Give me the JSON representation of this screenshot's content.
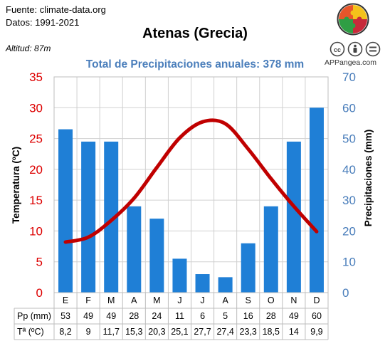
{
  "source": "Fuente: climate-data.org",
  "period": "Datos: 1991-2021",
  "altitude": "Altitud: 87m",
  "brand": "APPangea.com",
  "colors": {
    "temp_axis": "#dd0000",
    "precip_axis": "#4a7ebb",
    "bar": "#1f7fd6",
    "line": "#c00000"
  },
  "icons": [
    "puzzle-logo-icon",
    "cc-icon",
    "cc-by-icon",
    "cc-nd-icon"
  ],
  "table": {
    "pp_label": "Pp (mm)",
    "t_label": "Tª (ºC)",
    "pp_values": [
      "53",
      "49",
      "49",
      "28",
      "24",
      "11",
      "6",
      "5",
      "16",
      "28",
      "49",
      "60"
    ],
    "t_values": [
      "8,2",
      "9",
      "11,7",
      "15,3",
      "20,3",
      "25,1",
      "27,7",
      "27,4",
      "23,3",
      "18,5",
      "14",
      "9,9"
    ]
  },
  "chart_data": {
    "type": "bar",
    "title": "Atenas (Grecia)",
    "subtitle": "Total de Precipitaciones anuales: 378 mm",
    "categories": [
      "E",
      "F",
      "M",
      "A",
      "M",
      "J",
      "J",
      "A",
      "S",
      "O",
      "N",
      "D"
    ],
    "series": [
      {
        "name": "Pp (mm)",
        "type": "bar",
        "axis": "right",
        "values": [
          53,
          49,
          49,
          28,
          24,
          11,
          6,
          5,
          16,
          28,
          49,
          60
        ]
      },
      {
        "name": "Tª (ºC)",
        "type": "line",
        "axis": "left",
        "values": [
          8.2,
          9,
          11.7,
          15.3,
          20.3,
          25.1,
          27.7,
          27.4,
          23.3,
          18.5,
          14,
          9.9
        ]
      }
    ],
    "ylabel_left": "Temperatura (ºC)",
    "ylabel_right": "Precipitaciones (mm)",
    "ylim_left": [
      0,
      35
    ],
    "ylim_right": [
      0,
      70
    ],
    "yticks_left": [
      "0",
      "5",
      "10",
      "15",
      "20",
      "25",
      "30",
      "35"
    ],
    "yticks_right": [
      "0",
      "10",
      "20",
      "30",
      "40",
      "50",
      "60",
      "70"
    ],
    "grid": true
  }
}
